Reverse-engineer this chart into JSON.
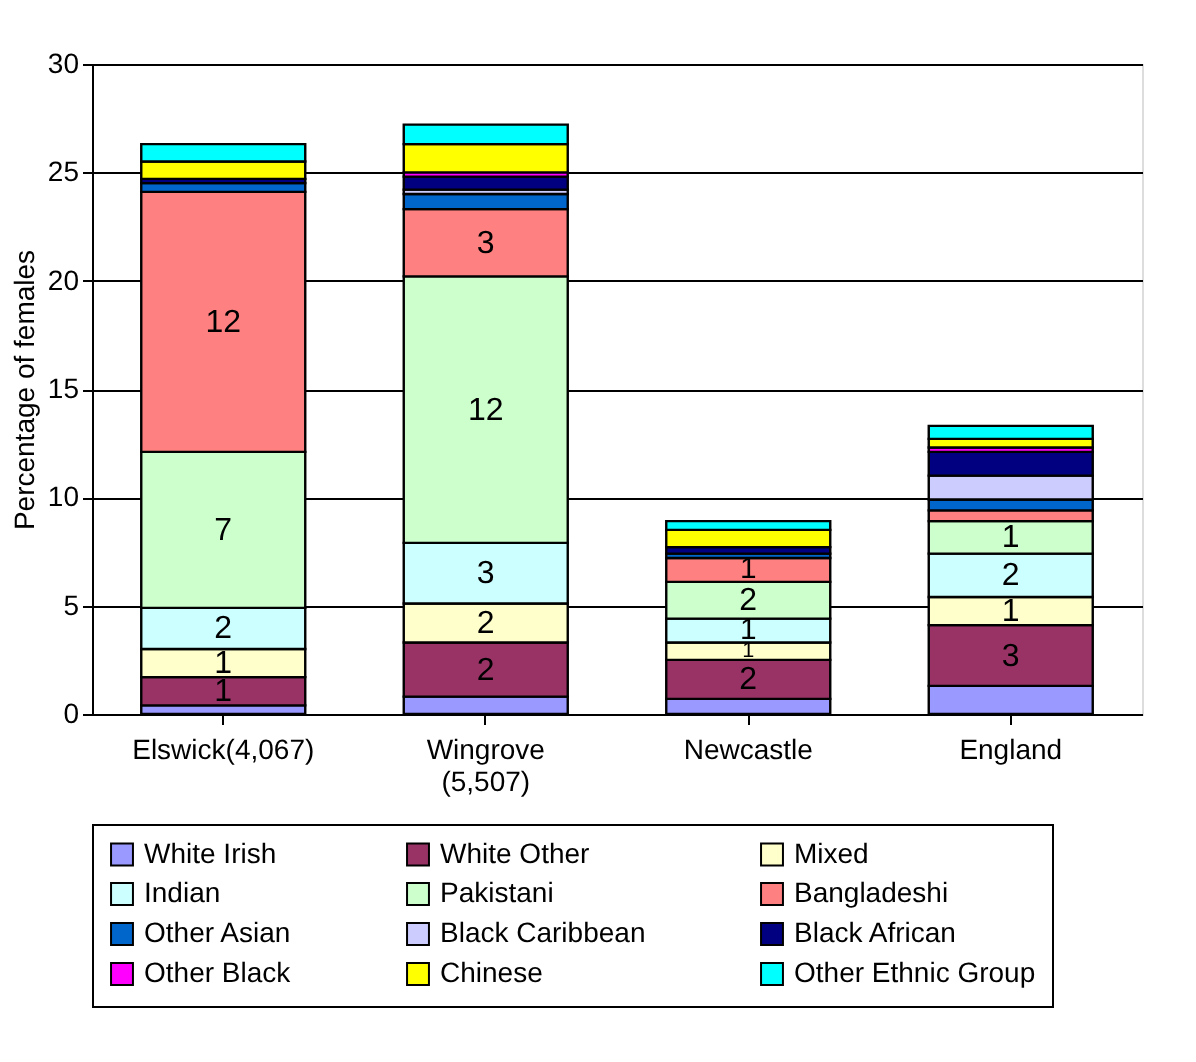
{
  "chart_data": {
    "type": "bar",
    "stacked": true,
    "ylabel": "Percentage of females",
    "categories": [
      "Elswick(4,067)",
      "Wingrove (5,507)",
      "Newcastle",
      "England"
    ],
    "ylim": [
      0,
      30
    ],
    "yticks": [
      0,
      5,
      10,
      15,
      20,
      25,
      30
    ],
    "grid": "y",
    "legend": "bottom",
    "series": [
      {
        "name": "White Irish",
        "color": "#9999ff",
        "values": [
          0.4,
          0.8,
          0.7,
          1.3
        ],
        "value_labels": [
          null,
          null,
          null,
          null
        ]
      },
      {
        "name": "White Other",
        "color": "#993366",
        "values": [
          1.3,
          2.5,
          1.8,
          2.8
        ],
        "value_labels": [
          "1",
          "2",
          "2",
          "3"
        ]
      },
      {
        "name": "Mixed",
        "color": "#ffffcc",
        "values": [
          1.3,
          1.8,
          0.8,
          1.3
        ],
        "value_labels": [
          "1",
          "2",
          "1",
          "1"
        ]
      },
      {
        "name": "Indian",
        "color": "#ccffff",
        "values": [
          1.9,
          2.8,
          1.1,
          2.0
        ],
        "value_labels": [
          "2",
          "3",
          "1",
          "2"
        ]
      },
      {
        "name": "Pakistani",
        "color": "#ccffcc",
        "values": [
          7.2,
          12.3,
          1.7,
          1.5
        ],
        "value_labels": [
          "7",
          "12",
          "2",
          "1"
        ]
      },
      {
        "name": "Bangladeshi",
        "color": "#ff8080",
        "values": [
          12.0,
          3.1,
          1.1,
          0.5
        ],
        "value_labels": [
          "12",
          "3",
          "1",
          null
        ]
      },
      {
        "name": "Other Asian",
        "color": "#0066cc",
        "values": [
          0.4,
          0.7,
          0.2,
          0.5
        ],
        "value_labels": [
          null,
          null,
          null,
          null
        ]
      },
      {
        "name": "Black Caribbean",
        "color": "#ccccff",
        "values": [
          null,
          0.2,
          null,
          1.1
        ],
        "value_labels": [
          null,
          null,
          null,
          null
        ]
      },
      {
        "name": "Black African",
        "color": "#000080",
        "values": [
          0.2,
          0.6,
          0.3,
          1.1
        ],
        "value_labels": [
          null,
          null,
          null,
          null
        ]
      },
      {
        "name": "Other Black",
        "color": "#ff00ff",
        "values": [
          null,
          0.2,
          null,
          0.2
        ],
        "value_labels": [
          null,
          null,
          null,
          null
        ]
      },
      {
        "name": "Chinese",
        "color": "#ffff00",
        "values": [
          0.8,
          1.3,
          0.8,
          0.4
        ],
        "value_labels": [
          null,
          null,
          null,
          null
        ]
      },
      {
        "name": "Other Ethnic Group",
        "color": "#00ffff",
        "values": [
          0.8,
          0.9,
          0.4,
          0.6
        ],
        "value_labels": [
          null,
          null,
          null,
          null
        ]
      }
    ]
  }
}
